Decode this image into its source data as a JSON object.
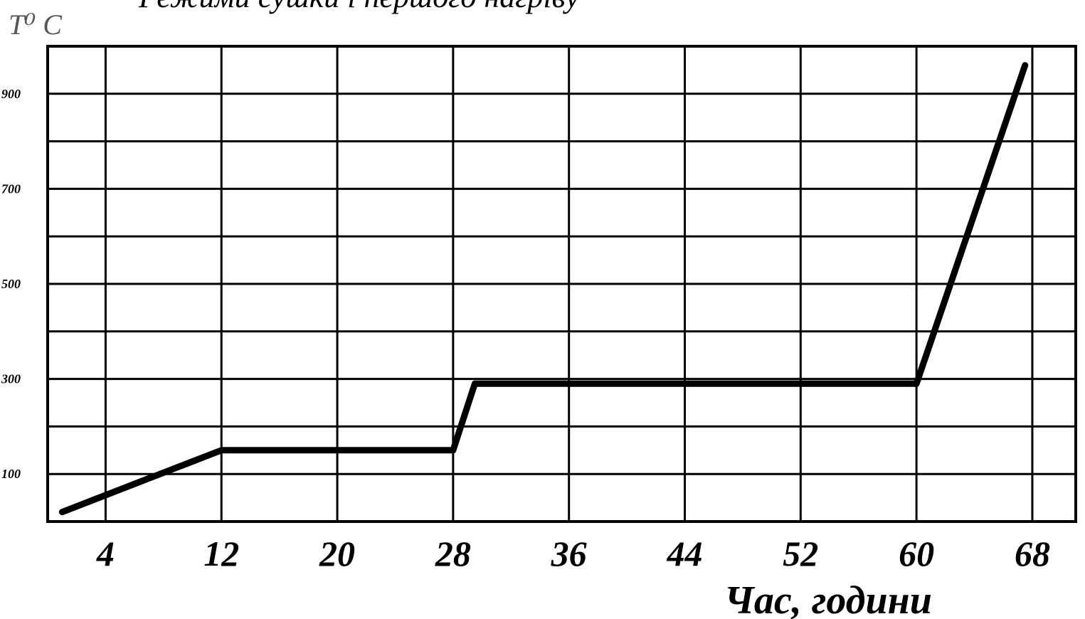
{
  "chart_data": {
    "type": "line",
    "title": "Режими сушки і першого нагріву",
    "ylabel": "T⁰ C",
    "xlabel": "Час, години",
    "x_ticks": [
      4,
      12,
      20,
      28,
      36,
      44,
      52,
      60,
      68
    ],
    "y_ticks": [
      "900",
      "700",
      "500",
      "300",
      "100"
    ],
    "xlim": [
      0,
      71
    ],
    "ylim": [
      0,
      1000
    ],
    "grid": true,
    "series": [
      {
        "x": [
          1,
          12,
          28,
          29.5,
          60,
          67.5
        ],
        "y": [
          20,
          150,
          150,
          290,
          290,
          960
        ]
      }
    ]
  },
  "colors": {
    "line": "#000000",
    "grid": "#000000",
    "background": "#ffffff"
  }
}
